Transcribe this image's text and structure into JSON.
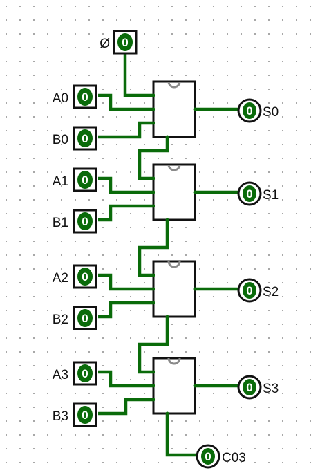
{
  "inputs": {
    "carry_in": {
      "label": "Ø",
      "value": "0"
    },
    "a0": {
      "label": "A0",
      "value": "0"
    },
    "b0": {
      "label": "B0",
      "value": "0"
    },
    "a1": {
      "label": "A1",
      "value": "0"
    },
    "b1": {
      "label": "B1",
      "value": "0"
    },
    "a2": {
      "label": "A2",
      "value": "0"
    },
    "b2": {
      "label": "B2",
      "value": "0"
    },
    "a3": {
      "label": "A3",
      "value": "0"
    },
    "b3": {
      "label": "B3",
      "value": "0"
    }
  },
  "outputs": {
    "s0": {
      "label": "S0",
      "value": "0"
    },
    "s1": {
      "label": "S1",
      "value": "0"
    },
    "s2": {
      "label": "S2",
      "value": "0"
    },
    "s3": {
      "label": "S3",
      "value": "0"
    },
    "carry_out": {
      "label": "C03",
      "value": "0"
    }
  },
  "colors": {
    "wire": "#0a6b0a",
    "pin": "#0a6b0a",
    "chip_outline": "#111111",
    "notch": "#8a8a8a"
  }
}
